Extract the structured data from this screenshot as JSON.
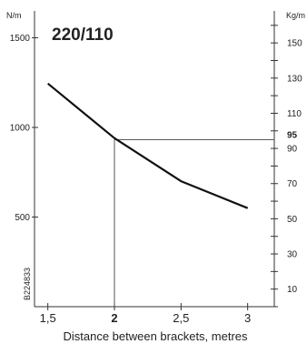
{
  "chart_data": {
    "type": "line",
    "title": "220/110",
    "xlabel": "Distance between brackets, metres",
    "ylabel_left": "N/m",
    "ylabel_right": "Kg/m",
    "code": "B224833",
    "xlim": [
      1.4,
      3.2
    ],
    "ylim": [
      0,
      1650
    ],
    "x_ticks": [
      {
        "value": 1.5,
        "label": "1,5",
        "bold": false
      },
      {
        "value": 2.0,
        "label": "2",
        "bold": true
      },
      {
        "value": 2.5,
        "label": "2,5",
        "bold": false
      },
      {
        "value": 3.0,
        "label": "3",
        "bold": false
      }
    ],
    "y_left_ticks": [
      {
        "value": 500,
        "label": "500"
      },
      {
        "value": 1000,
        "label": "1000"
      },
      {
        "value": 1500,
        "label": "1500"
      }
    ],
    "y_right_labels": [
      {
        "value": 10,
        "label": "10",
        "bold": false
      },
      {
        "value": 30,
        "label": "30",
        "bold": false
      },
      {
        "value": 50,
        "label": "50",
        "bold": false
      },
      {
        "value": 70,
        "label": "70",
        "bold": false
      },
      {
        "value": 90,
        "label": "90",
        "bold": false
      },
      {
        "value": 95,
        "label": "95",
        "bold": true
      },
      {
        "value": 110,
        "label": "110",
        "bold": false
      },
      {
        "value": 130,
        "label": "130",
        "bold": false
      },
      {
        "value": 150,
        "label": "150",
        "bold": false
      }
    ],
    "y_right_minor_ticks": [
      0,
      10,
      20,
      30,
      40,
      50,
      60,
      70,
      80,
      90,
      100,
      110,
      120,
      130,
      140,
      150,
      160
    ],
    "kg_to_n": 9.81,
    "series": [
      {
        "x": [
          1.5,
          2.0,
          2.5,
          3.0
        ],
        "y": [
          1245,
          940,
          700,
          550
        ]
      }
    ],
    "reference": {
      "x": 2.0,
      "y_kg": 95
    },
    "grid": false
  }
}
